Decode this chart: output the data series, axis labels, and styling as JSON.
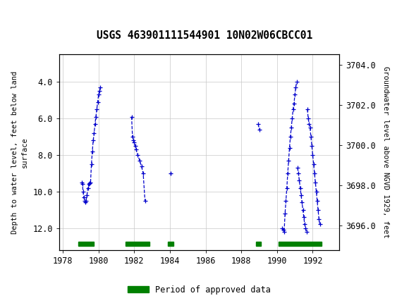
{
  "title": "USGS 463901111544901 10N02W06CBCC01",
  "ylabel_left": "Depth to water level, feet below land\nsurface",
  "ylabel_right": "Groundwater level above NGVD 1929, feet",
  "xlim": [
    1977.8,
    1993.5
  ],
  "ylim_left": [
    13.2,
    2.5
  ],
  "ylim_right": [
    3694.8,
    3704.5
  ],
  "xticks": [
    1978,
    1980,
    1982,
    1984,
    1986,
    1988,
    1990,
    1992
  ],
  "yticks_left": [
    4.0,
    6.0,
    8.0,
    10.0,
    12.0
  ],
  "yticks_right": [
    3696.0,
    3698.0,
    3700.0,
    3702.0,
    3704.0
  ],
  "background_color": "#ffffff",
  "header_color": "#006b3c",
  "data_color": "#0000cc",
  "approved_color": "#008000",
  "segments": [
    [
      [
        1979.05,
        9.5
      ],
      [
        1979.1,
        9.6
      ],
      [
        1979.13,
        10.0
      ],
      [
        1979.17,
        10.3
      ],
      [
        1979.21,
        10.5
      ],
      [
        1979.25,
        10.6
      ],
      [
        1979.3,
        10.5
      ],
      [
        1979.35,
        10.2
      ],
      [
        1979.4,
        9.8
      ],
      [
        1979.45,
        9.6
      ],
      [
        1979.5,
        9.55
      ],
      [
        1979.55,
        9.5
      ],
      [
        1979.6,
        8.5
      ],
      [
        1979.65,
        7.8
      ],
      [
        1979.7,
        7.2
      ],
      [
        1979.75,
        6.8
      ],
      [
        1979.8,
        6.3
      ],
      [
        1979.85,
        5.9
      ],
      [
        1979.9,
        5.5
      ],
      [
        1979.95,
        5.1
      ],
      [
        1980.0,
        4.7
      ],
      [
        1980.05,
        4.5
      ],
      [
        1980.1,
        4.3
      ]
    ],
    [
      [
        1981.85,
        5.9
      ],
      [
        1981.9,
        7.0
      ],
      [
        1981.95,
        7.2
      ],
      [
        1982.0,
        7.3
      ],
      [
        1982.05,
        7.5
      ],
      [
        1982.1,
        7.7
      ],
      [
        1982.2,
        8.0
      ],
      [
        1982.3,
        8.3
      ],
      [
        1982.4,
        8.6
      ],
      [
        1982.5,
        9.0
      ],
      [
        1982.6,
        10.5
      ]
    ],
    [
      [
        1984.05,
        9.0
      ]
    ],
    [
      [
        1988.95,
        6.3
      ],
      [
        1989.0,
        6.6
      ]
    ],
    [
      [
        1990.3,
        12.0
      ],
      [
        1990.35,
        12.1
      ],
      [
        1990.4,
        12.2
      ],
      [
        1990.45,
        11.2
      ],
      [
        1990.5,
        10.5
      ],
      [
        1990.55,
        9.8
      ],
      [
        1990.6,
        9.0
      ],
      [
        1990.65,
        8.3
      ],
      [
        1990.7,
        7.6
      ],
      [
        1990.75,
        7.0
      ],
      [
        1990.8,
        6.5
      ],
      [
        1990.85,
        6.0
      ],
      [
        1990.9,
        5.5
      ],
      [
        1990.95,
        5.2
      ],
      [
        1991.0,
        4.7
      ],
      [
        1991.05,
        4.3
      ],
      [
        1991.1,
        4.0
      ]
    ],
    [
      [
        1991.15,
        8.7
      ],
      [
        1991.2,
        9.0
      ],
      [
        1991.25,
        9.4
      ],
      [
        1991.3,
        9.8
      ],
      [
        1991.35,
        10.2
      ],
      [
        1991.4,
        10.6
      ],
      [
        1991.45,
        11.0
      ],
      [
        1991.5,
        11.4
      ],
      [
        1991.55,
        11.8
      ],
      [
        1991.6,
        12.0
      ],
      [
        1991.65,
        12.2
      ]
    ],
    [
      [
        1991.7,
        5.5
      ],
      [
        1991.75,
        6.0
      ],
      [
        1991.8,
        6.3
      ],
      [
        1991.85,
        6.5
      ],
      [
        1991.9,
        7.0
      ],
      [
        1991.95,
        7.5
      ],
      [
        1992.0,
        8.0
      ],
      [
        1992.05,
        8.5
      ],
      [
        1992.1,
        9.0
      ],
      [
        1992.15,
        9.5
      ],
      [
        1992.2,
        10.0
      ],
      [
        1992.25,
        10.5
      ],
      [
        1992.3,
        11.0
      ],
      [
        1992.35,
        11.5
      ],
      [
        1992.4,
        11.8
      ]
    ]
  ],
  "approved_bars": [
    [
      1978.88,
      1979.72
    ],
    [
      1981.5,
      1982.85
    ],
    [
      1983.9,
      1984.2
    ],
    [
      1988.82,
      1989.08
    ],
    [
      1990.1,
      1992.5
    ]
  ],
  "approved_bar_y": 12.85,
  "approved_bar_height": 0.22
}
